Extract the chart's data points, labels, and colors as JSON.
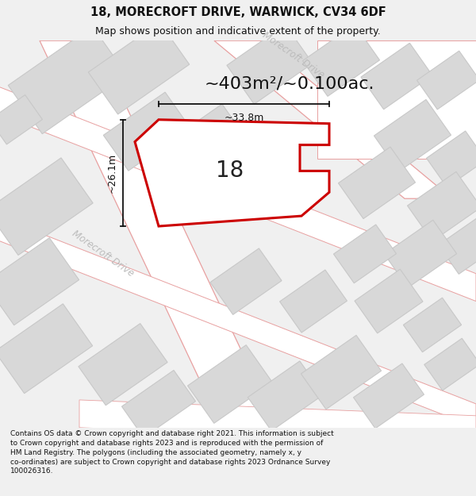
{
  "title_line1": "18, MORECROFT DRIVE, WARWICK, CV34 6DF",
  "title_line2": "Map shows position and indicative extent of the property.",
  "area_label": "~403m²/~0.100ac.",
  "dim_vertical": "~26.1m",
  "dim_horizontal": "~33.8m",
  "property_label": "18",
  "road_label": "Morecroft Drive",
  "footer_text": "Contains OS data © Crown copyright and database right 2021. This information is subject to Crown copyright and database rights 2023 and is reproduced with the permission of HM Land Registry. The polygons (including the associated geometry, namely x, y co-ordinates) are subject to Crown copyright and database rights 2023 Ordnance Survey 100026316.",
  "bg_color": "#f0f0f0",
  "map_bg_color": "#f0f0f0",
  "road_fill_color": "#ffffff",
  "road_edge_color": "#e8a0a0",
  "building_fill_color": "#d8d8d8",
  "building_edge_color": "#c8c8c8",
  "property_edge_color": "#cc0000",
  "property_fill_color": "#ffffff",
  "dim_color": "#111111",
  "title_color": "#111111",
  "footer_color": "#111111",
  "road_label_color": "#bbbbbb",
  "title_fontsize": 10.5,
  "subtitle_fontsize": 9,
  "area_fontsize": 16,
  "label_fontsize": 20,
  "dim_fontsize": 9,
  "footer_fontsize": 6.5
}
